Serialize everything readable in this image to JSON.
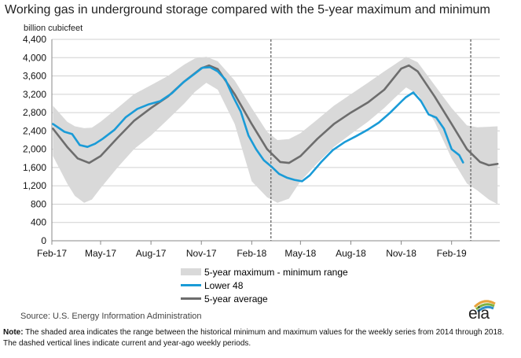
{
  "title": "Working gas in underground  storage compared with the 5-year maximum and minimum",
  "chart_data": {
    "type": "area",
    "ylabel": "billion cubicfeet",
    "ylim": [
      0,
      4400
    ],
    "yticks": [
      0,
      400,
      800,
      1200,
      1600,
      2000,
      2400,
      2800,
      3200,
      3600,
      4000,
      4400
    ],
    "ytick_labels": [
      "0",
      "400",
      "800",
      "1,200",
      "1,600",
      "2,000",
      "2,400",
      "2,800",
      "3,200",
      "3,600",
      "4,000",
      "4,400"
    ],
    "xlim": [
      "2017-02-01",
      "2019-04-30"
    ],
    "xticks": [
      "2017-02-01",
      "2017-05-01",
      "2017-08-01",
      "2017-11-01",
      "2018-02-01",
      "2018-05-01",
      "2018-08-01",
      "2018-11-01",
      "2019-02-01"
    ],
    "xtick_labels": [
      "Feb-17",
      "May-17",
      "Aug-17",
      "Nov-17",
      "Feb-18",
      "May-18",
      "Aug-18",
      "Nov-18",
      "Feb-19"
    ],
    "vlines": [
      "2018-03-08",
      "2019-03-08"
    ],
    "grid": true,
    "legend_position": "bottom",
    "series": [
      {
        "name": "5-year maximum - minimum range",
        "type": "area",
        "color": "#d9d9d9",
        "x": [
          "2017-02-03",
          "2017-03-01",
          "2017-03-15",
          "2017-04-01",
          "2017-04-15",
          "2017-05-01",
          "2017-06-01",
          "2017-07-01",
          "2017-08-01",
          "2017-09-01",
          "2017-10-01",
          "2017-10-20",
          "2017-11-10",
          "2017-12-01",
          "2018-01-01",
          "2018-02-01",
          "2018-03-01",
          "2018-03-20",
          "2018-04-10",
          "2018-05-01",
          "2018-06-01",
          "2018-07-01",
          "2018-08-01",
          "2018-09-01",
          "2018-10-01",
          "2018-10-20",
          "2018-11-10",
          "2018-12-01",
          "2019-01-01",
          "2019-02-01",
          "2019-03-01",
          "2019-03-20",
          "2019-04-10",
          "2019-04-26"
        ],
        "high": [
          2950,
          2600,
          2500,
          2460,
          2470,
          2600,
          2900,
          3200,
          3400,
          3600,
          3850,
          3980,
          4020,
          3920,
          3500,
          2900,
          2380,
          2200,
          2220,
          2350,
          2650,
          2950,
          3200,
          3450,
          3700,
          3850,
          4020,
          3900,
          3400,
          2900,
          2520,
          2480,
          2490,
          2500
        ],
        "low": [
          1850,
          1250,
          980,
          830,
          900,
          1150,
          1600,
          2000,
          2300,
          2650,
          3000,
          3250,
          3450,
          3300,
          2550,
          1300,
          950,
          830,
          920,
          1300,
          1700,
          2050,
          2330,
          2600,
          2900,
          3120,
          3350,
          3200,
          2600,
          1800,
          1250,
          1100,
          900,
          800
        ]
      },
      {
        "name": "Lower 48",
        "type": "line",
        "color": "#1a9bd7",
        "x": [
          "2017-02-03",
          "2017-02-24",
          "2017-03-10",
          "2017-03-24",
          "2017-04-07",
          "2017-04-21",
          "2017-05-05",
          "2017-05-26",
          "2017-06-16",
          "2017-07-07",
          "2017-07-28",
          "2017-08-18",
          "2017-09-08",
          "2017-09-29",
          "2017-10-20",
          "2017-11-03",
          "2017-11-17",
          "2017-12-01",
          "2017-12-15",
          "2017-12-29",
          "2018-01-12",
          "2018-01-26",
          "2018-02-09",
          "2018-02-23",
          "2018-03-09",
          "2018-03-23",
          "2018-04-06",
          "2018-04-20",
          "2018-05-04",
          "2018-05-18",
          "2018-06-08",
          "2018-06-29",
          "2018-07-20",
          "2018-08-10",
          "2018-08-31",
          "2018-09-21",
          "2018-10-12",
          "2018-11-02",
          "2018-11-09",
          "2018-11-23",
          "2018-12-07",
          "2018-12-21",
          "2019-01-04",
          "2019-01-18",
          "2019-02-01",
          "2019-02-15",
          "2019-02-22"
        ],
        "values": [
          2550,
          2380,
          2330,
          2090,
          2050,
          2120,
          2230,
          2420,
          2700,
          2880,
          2980,
          3050,
          3220,
          3460,
          3650,
          3780,
          3790,
          3700,
          3520,
          3150,
          2820,
          2300,
          2000,
          1760,
          1620,
          1460,
          1380,
          1330,
          1300,
          1430,
          1720,
          1980,
          2150,
          2280,
          2420,
          2580,
          2800,
          3050,
          3130,
          3240,
          3050,
          2760,
          2690,
          2450,
          2000,
          1870,
          1710
        ]
      },
      {
        "name": "5-year average",
        "type": "line",
        "color": "#6d6d6d",
        "x": [
          "2017-02-03",
          "2017-03-01",
          "2017-03-20",
          "2017-04-10",
          "2017-05-01",
          "2017-06-01",
          "2017-07-01",
          "2017-08-01",
          "2017-09-01",
          "2017-10-01",
          "2017-11-01",
          "2017-11-15",
          "2017-12-01",
          "2018-01-01",
          "2018-02-01",
          "2018-03-01",
          "2018-03-25",
          "2018-04-10",
          "2018-05-01",
          "2018-06-01",
          "2018-07-01",
          "2018-08-01",
          "2018-09-01",
          "2018-10-01",
          "2018-11-01",
          "2018-11-15",
          "2018-12-01",
          "2019-01-01",
          "2019-02-01",
          "2019-03-01",
          "2019-03-25",
          "2019-04-10",
          "2019-04-26"
        ],
        "values": [
          2450,
          2050,
          1800,
          1700,
          1850,
          2250,
          2620,
          2900,
          3150,
          3480,
          3770,
          3830,
          3750,
          3200,
          2550,
          2000,
          1720,
          1700,
          1850,
          2230,
          2550,
          2800,
          3020,
          3300,
          3760,
          3830,
          3700,
          3150,
          2550,
          2000,
          1720,
          1650,
          1680
        ]
      }
    ]
  },
  "legend": {
    "range_label": "5-year maximum - minimum range",
    "lower48_label": "Lower 48",
    "avg_label": "5-year average"
  },
  "source": "Source:  U.S. Energy Information Administration",
  "note_label": "Note:",
  "note_text": " The shaded area indicates the range between the historical minimum and maximum values for the weekly series from 2014 through 2018. The dashed vertical lines indicate current and year-ago weekly periods.",
  "logo_text": "eia",
  "logo_colors": [
    "#e8a33b",
    "#7fb241",
    "#2f8fc7"
  ]
}
